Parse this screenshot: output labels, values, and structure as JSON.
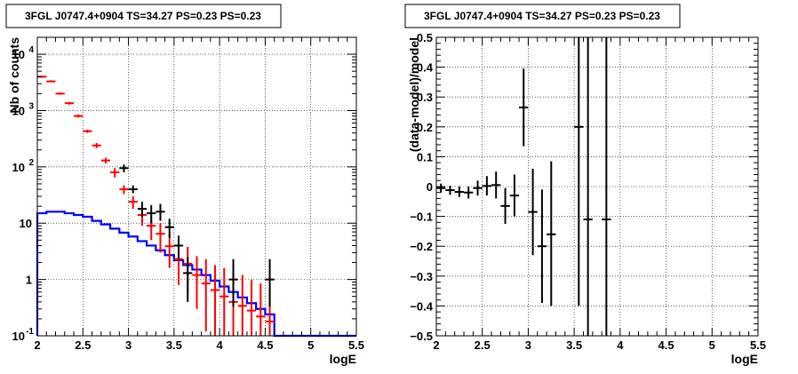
{
  "chart_data": [
    {
      "type": "line",
      "title": "3FGL J0747.4+0904 TS=34.27 PS=0.23 PS=0.23",
      "xlabel": "logE",
      "ylabel": "Nb of counts",
      "xlim": [
        2,
        5.5
      ],
      "ylim": [
        0.1,
        20000
      ],
      "yscale": "log",
      "grid": true,
      "x_ticks": [
        "2",
        "2.5",
        "3",
        "3.5",
        "4",
        "4.5",
        "5",
        "5.5"
      ],
      "y_ticks": [
        {
          "value": 0.1,
          "label": "10",
          "sup": "-1"
        },
        {
          "value": 1,
          "label": "1",
          "sup": ""
        },
        {
          "value": 10,
          "label": "10",
          "sup": ""
        },
        {
          "value": 100,
          "label": "10",
          "sup": "2"
        },
        {
          "value": 1000,
          "label": "10",
          "sup": "3"
        },
        {
          "value": 10000,
          "label": "10",
          "sup": "4"
        }
      ],
      "bin_edges": [
        2.0,
        2.1,
        2.2,
        2.3,
        2.4,
        2.5,
        2.6,
        2.7,
        2.8,
        2.9,
        3.0,
        3.1,
        3.2,
        3.3,
        3.4,
        3.5,
        3.6,
        3.7,
        3.8,
        3.9,
        4.0,
        4.1,
        4.2,
        4.3,
        4.4,
        4.5,
        4.6,
        4.7,
        4.8,
        4.9,
        5.0,
        5.1,
        5.2,
        5.3,
        5.4,
        5.5
      ],
      "series": [
        {
          "role": "source_model",
          "color": "#0000ff",
          "values": [
            15,
            16,
            16,
            15,
            14,
            13,
            11,
            9.5,
            8,
            6.8,
            5.8,
            4.8,
            4.0,
            3.3,
            2.7,
            2.2,
            1.8,
            1.5,
            1.2,
            0.95,
            0.75,
            0.6,
            0.48,
            0.38,
            0.3,
            0.24,
            0.1,
            0.1,
            0.1,
            0.1,
            0.1,
            0.1,
            0.1,
            0.1,
            0.1
          ]
        },
        {
          "role": "total_model",
          "color": "#ff0000",
          "x": [
            2.05,
            2.15,
            2.25,
            2.35,
            2.45,
            2.55,
            2.65,
            2.75,
            2.85,
            2.95,
            3.05,
            3.15,
            3.25,
            3.35,
            3.45,
            3.55,
            3.65,
            3.75,
            3.85,
            3.95,
            4.05,
            4.15,
            4.25,
            4.35,
            4.45,
            4.55
          ],
          "y": [
            4000,
            3300,
            2000,
            1350,
            800,
            430,
            240,
            130,
            80,
            40,
            24,
            14,
            9,
            6.5,
            3.9,
            2.3,
            1.9,
            1.2,
            0.85,
            0.65,
            0.5,
            0.4,
            0.34,
            0.28,
            0.22,
            0.18
          ],
          "ylo": [
            3850,
            3180,
            1910,
            1280,
            750,
            400,
            215,
            115,
            65,
            33,
            18,
            9,
            5,
            3,
            1.6,
            0.8,
            0.6,
            0.3,
            0.12,
            0.1,
            0.1,
            0.1,
            0.1,
            0.1,
            0.1,
            0.1
          ],
          "yhi": [
            4150,
            3450,
            2100,
            1420,
            850,
            460,
            265,
            145,
            95,
            47,
            30,
            19,
            13,
            10,
            6.5,
            4.2,
            3.8,
            2.6,
            2.3,
            1.8,
            1.6,
            1.3,
            1.2,
            1.0,
            0.85,
            0.7
          ]
        },
        {
          "role": "data",
          "color": "#000000",
          "x": [
            2.95,
            3.05,
            3.15,
            3.25,
            3.35,
            3.45,
            3.55,
            3.65,
            4.15,
            4.55
          ],
          "y": [
            95,
            40,
            18,
            15,
            16,
            8.5,
            4,
            1.3,
            1,
            1
          ],
          "ylo": [
            80,
            34,
            13,
            10,
            11,
            5.5,
            2.3,
            0.4,
            0.33,
            0.33
          ],
          "yhi": [
            110,
            47,
            24,
            21,
            22,
            12,
            6,
            2.5,
            2.3,
            2.3
          ]
        }
      ]
    },
    {
      "type": "scatter",
      "title": "3FGL J0747.4+0904 TS=34.27 PS=0.23 PS=0.23",
      "xlabel": "logE",
      "ylabel": "(data-model)/model",
      "xlim": [
        2,
        5.5
      ],
      "ylim": [
        -0.5,
        0.5
      ],
      "grid": true,
      "x_ticks": [
        "2",
        "2.5",
        "3",
        "3.5",
        "4",
        "4.5",
        "5",
        "5.5"
      ],
      "y_ticks": [
        "−0.5",
        "−0.4",
        "−0.3",
        "−0.2",
        "−0.1",
        "0",
        "0.1",
        "0.2",
        "0.3",
        "0.4",
        "0.5"
      ],
      "series": [
        {
          "role": "residuals",
          "color": "#000000",
          "x": [
            2.05,
            2.15,
            2.25,
            2.35,
            2.45,
            2.55,
            2.65,
            2.75,
            2.85,
            2.95,
            3.05,
            3.15,
            3.25,
            3.55,
            3.65,
            3.85
          ],
          "y": [
            -0.005,
            -0.012,
            -0.018,
            -0.02,
            -0.005,
            0.002,
            0.005,
            -0.065,
            -0.03,
            0.265,
            -0.085,
            -0.2,
            -0.16,
            0.2,
            -0.11,
            -0.11
          ],
          "ylo": [
            -0.02,
            -0.028,
            -0.035,
            -0.04,
            -0.03,
            -0.03,
            -0.04,
            -0.125,
            -0.1,
            0.135,
            -0.23,
            -0.39,
            -0.4,
            -0.4,
            -0.5,
            -0.5
          ],
          "yhi": [
            0.01,
            0.003,
            0.0,
            0.0,
            0.02,
            0.035,
            0.05,
            -0.005,
            0.04,
            0.395,
            0.06,
            -0.01,
            0.085,
            0.5,
            0.5,
            0.5
          ]
        }
      ]
    }
  ]
}
